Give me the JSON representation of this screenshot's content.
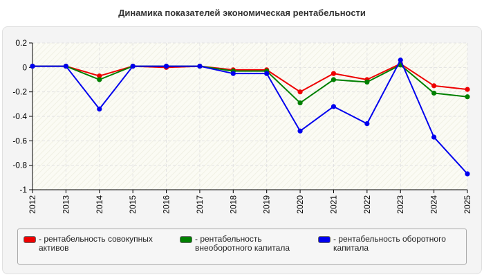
{
  "chart_data": {
    "type": "line",
    "title": "Динамика показателей экономическая рентабельности",
    "x": [
      "2012",
      "2013",
      "2014",
      "2015",
      "2016",
      "2017",
      "2018",
      "2019",
      "2020",
      "2021",
      "2022",
      "2023",
      "2024",
      "2025"
    ],
    "y_ticks": [
      "0.2",
      "0",
      "-0.2",
      "-0.4",
      "-0.6",
      "-0.8",
      "-1"
    ],
    "ylim": [
      -1,
      0.2
    ],
    "grid": true,
    "legend_position": "bottom",
    "series": [
      {
        "name": "- рентабельность совокупных активов",
        "color": "#ee0000",
        "values": [
          0.01,
          0.01,
          -0.07,
          0.01,
          0.0,
          0.01,
          -0.02,
          -0.02,
          -0.2,
          -0.05,
          -0.1,
          0.03,
          -0.15,
          -0.18
        ]
      },
      {
        "name": "- рентабельность внеоборотного капитала",
        "color": "#008000",
        "values": [
          0.01,
          0.01,
          -0.1,
          0.01,
          0.01,
          0.01,
          -0.03,
          -0.03,
          -0.29,
          -0.1,
          -0.12,
          0.02,
          -0.21,
          -0.24
        ]
      },
      {
        "name": "- рентабельность оборотного капитала",
        "color": "#0000ee",
        "values": [
          0.01,
          0.01,
          -0.34,
          0.01,
          0.01,
          0.01,
          -0.05,
          -0.05,
          -0.52,
          -0.32,
          -0.46,
          0.06,
          -0.57,
          -0.87
        ]
      }
    ]
  }
}
